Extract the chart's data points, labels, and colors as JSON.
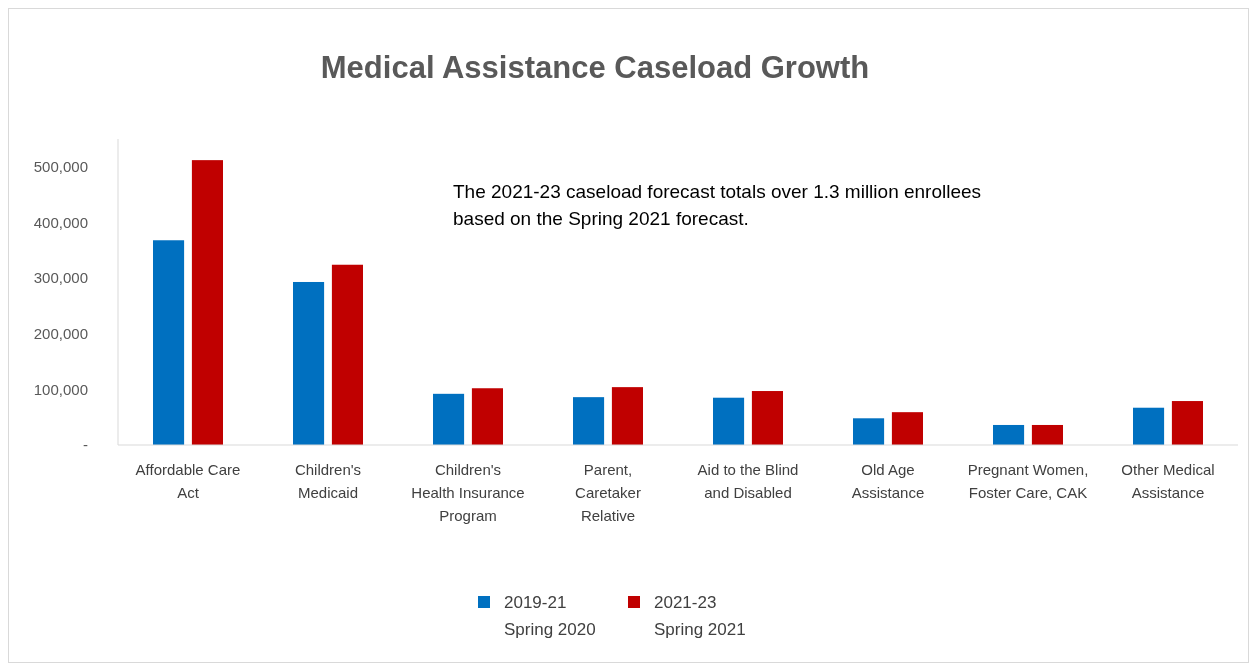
{
  "chart_data": {
    "type": "bar",
    "title": "Medical Assistance Caseload Growth",
    "categories": [
      "Affordable Care Act",
      "Children's Medicaid",
      "Children's Health Insurance Program",
      "Parent, Caretaker Relative",
      "Aid to the Blind and Disabled",
      "Old Age Assistance",
      "Pregnant Women, Foster Care, CAK",
      "Other Medical Assistance"
    ],
    "series": [
      {
        "name": "2019-21\nSpring 2020",
        "color": "#0070c0",
        "values": [
          368000,
          293000,
          92000,
          86000,
          85000,
          48000,
          36000,
          67000
        ]
      },
      {
        "name": "2021-23\nSpring 2021",
        "color": "#c00000",
        "values": [
          512000,
          324000,
          102000,
          104000,
          97000,
          59000,
          36000,
          79000
        ]
      }
    ],
    "ylim": [
      0,
      550000
    ],
    "yticks": [
      {
        "value": 0,
        "label": "-"
      },
      {
        "value": 100000,
        "label": "100,000"
      },
      {
        "value": 200000,
        "label": "200,000"
      },
      {
        "value": 300000,
        "label": "300,000"
      },
      {
        "value": 400000,
        "label": "400,000"
      },
      {
        "value": 500000,
        "label": "500,000"
      }
    ],
    "annotations": [
      "The 2021-23 caseload forecast totals over 1.3 million enrollees based on the Spring 2021 forecast."
    ],
    "grid": false,
    "legend": "bottom"
  }
}
